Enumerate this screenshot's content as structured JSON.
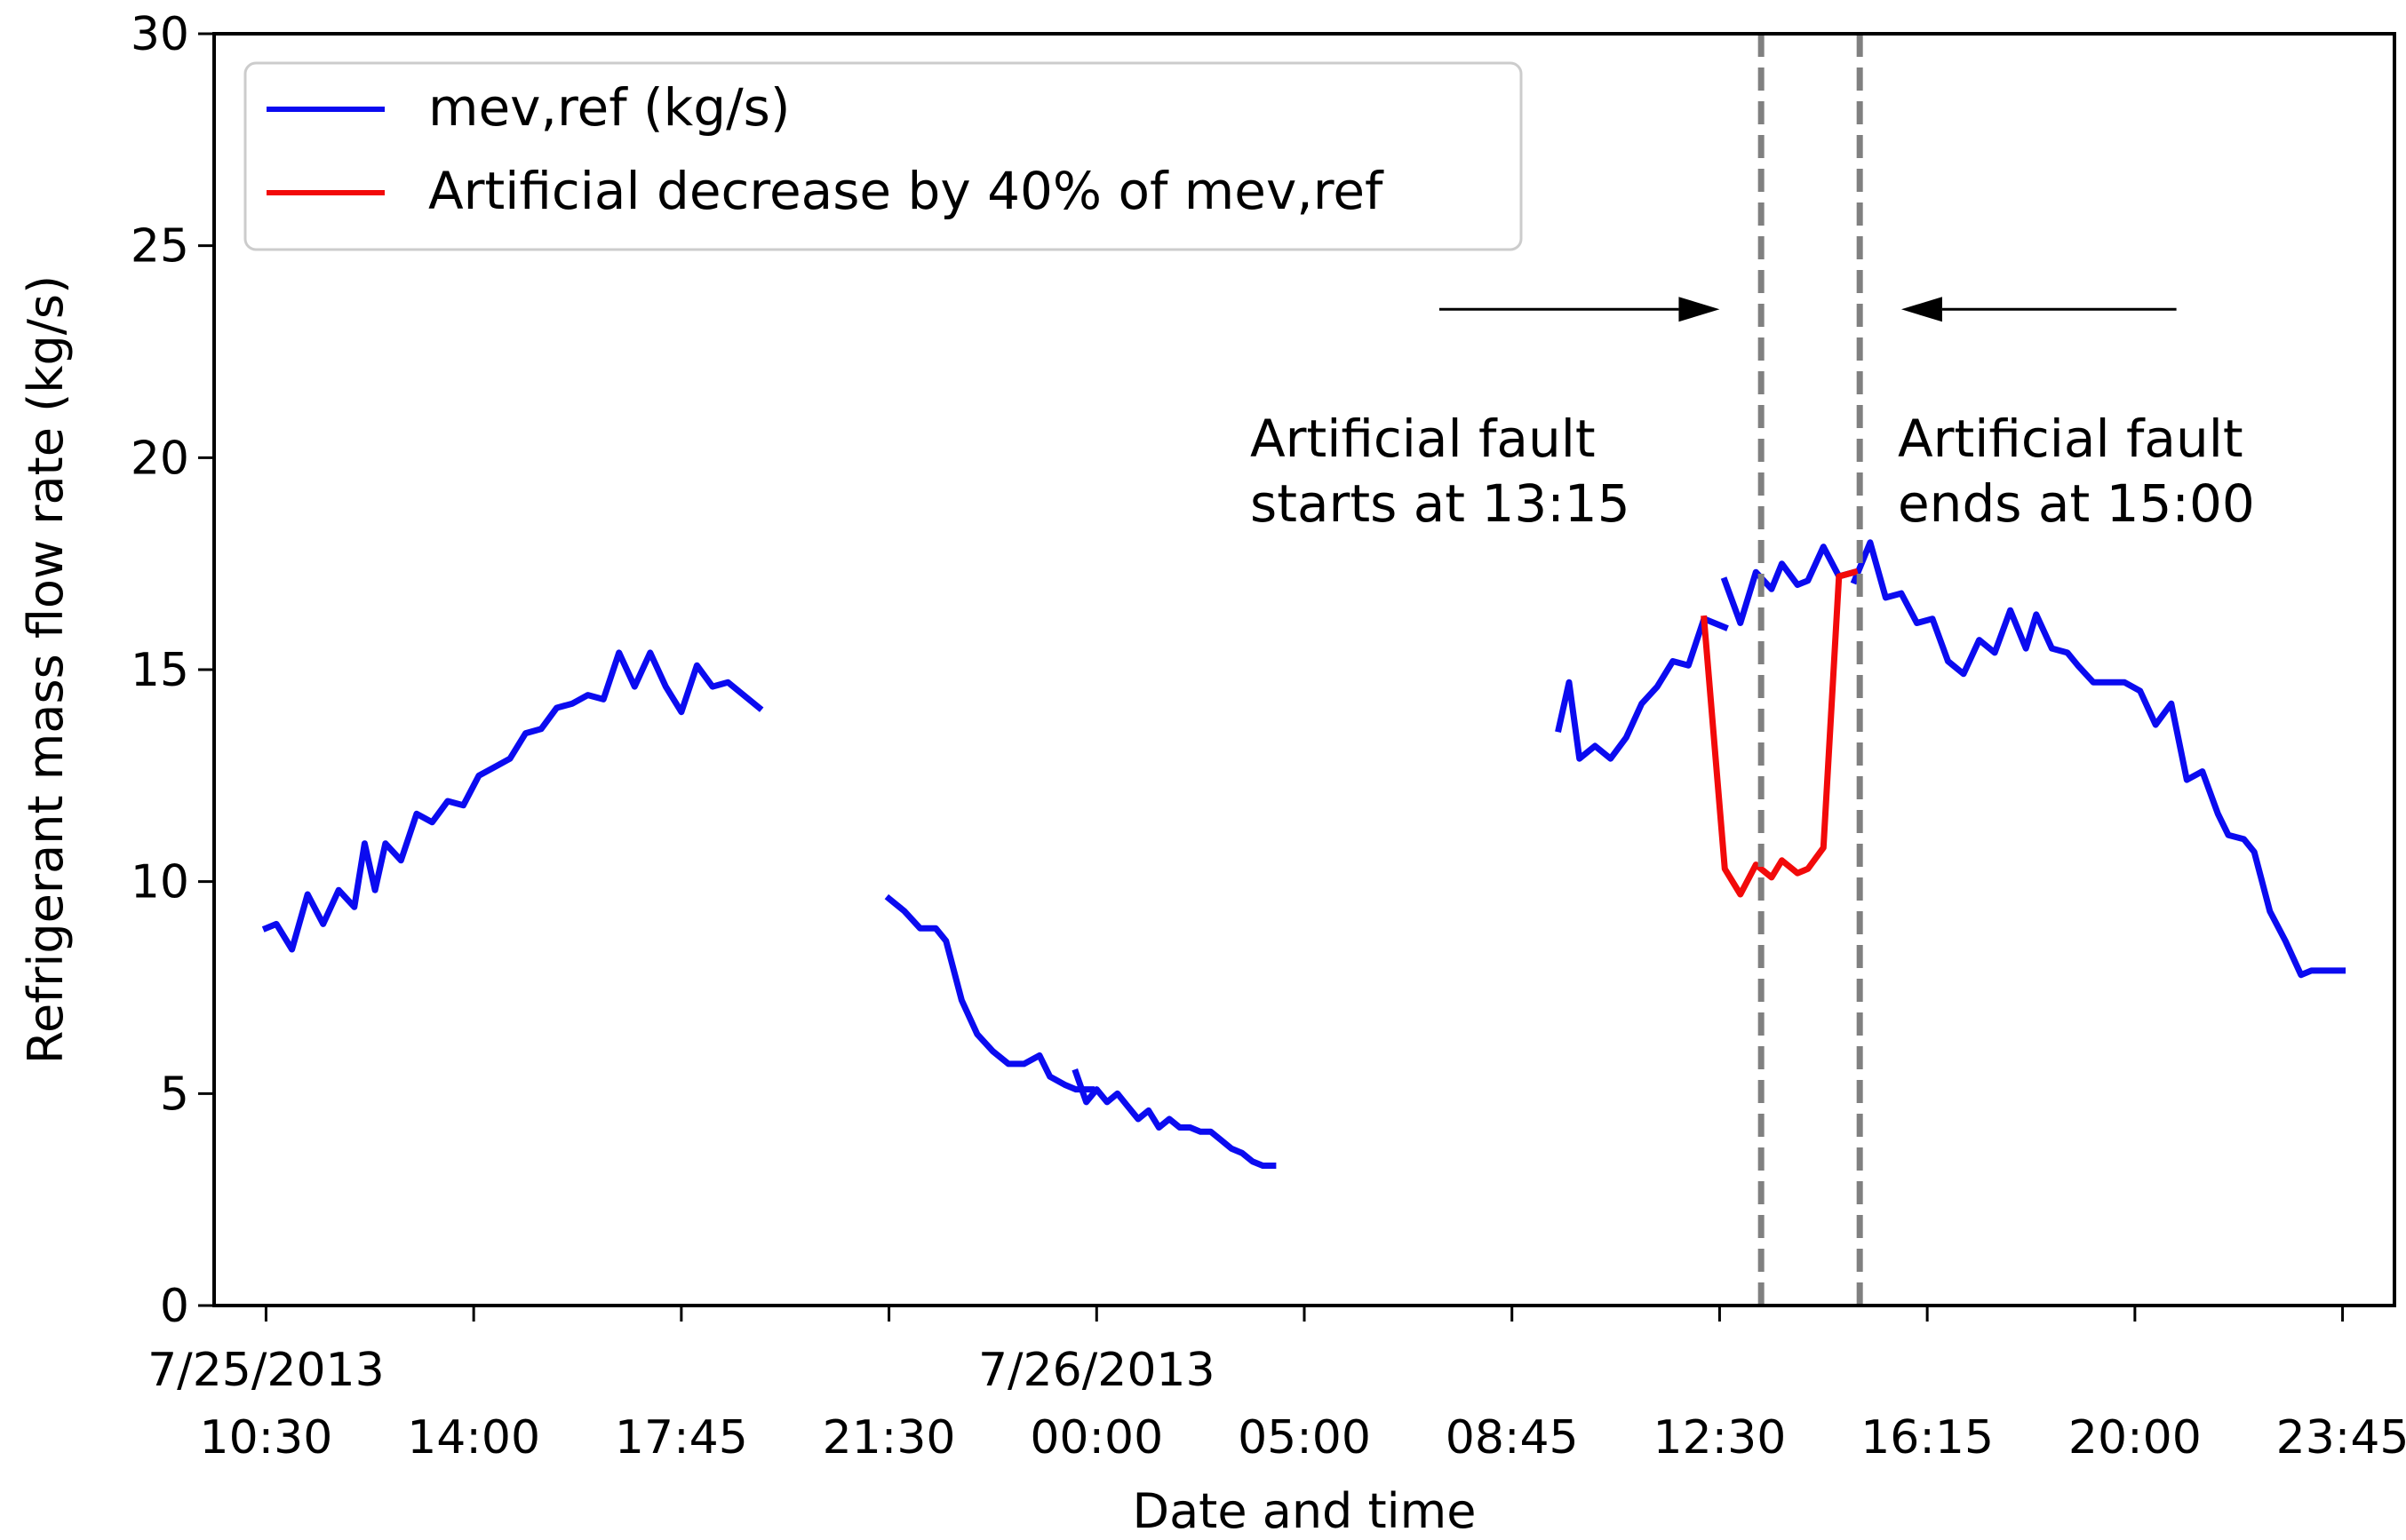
{
  "chart_data": {
    "type": "line",
    "title": "",
    "xlabel": "Date and time",
    "ylabel": "Refrigerant mass flow rate (kg/s)",
    "ylim": [
      0,
      30
    ],
    "xlim": [
      -0.5,
      20.5
    ],
    "yticks": [
      0,
      5,
      10,
      15,
      20,
      25,
      30
    ],
    "xtick_positions": [
      0,
      2,
      4,
      6,
      8,
      10,
      12,
      14,
      16,
      18,
      20
    ],
    "xticks": [
      {
        "date": "7/25/2013",
        "time": "10:30"
      },
      {
        "date": "",
        "time": "14:00"
      },
      {
        "date": "",
        "time": "17:45"
      },
      {
        "date": "",
        "time": "21:30"
      },
      {
        "date": "7/26/2013",
        "time": "00:00"
      },
      {
        "date": "",
        "time": "05:00"
      },
      {
        "date": "",
        "time": "08:45"
      },
      {
        "date": "",
        "time": "12:30"
      },
      {
        "date": "",
        "time": "16:15"
      },
      {
        "date": "",
        "time": "20:00"
      },
      {
        "date": "",
        "time": "23:45"
      }
    ],
    "series": [
      {
        "name": "mev,ref (kg/s)",
        "color": "#0b0bf0",
        "segments": [
          {
            "x": [
              0,
              0.1,
              0.25,
              0.4,
              0.55,
              0.7,
              0.85,
              0.95,
              1.05,
              1.15,
              1.3,
              1.45,
              1.6,
              1.75,
              1.9,
              2.05,
              2.2,
              2.35,
              2.5,
              2.65,
              2.8,
              2.95,
              3.1,
              3.25,
              3.4,
              3.55,
              3.7,
              3.85,
              4.0,
              4.15,
              4.3,
              4.45,
              4.75
            ],
            "y": [
              8.9,
              9.0,
              8.4,
              9.7,
              9.0,
              9.8,
              9.4,
              10.9,
              9.8,
              10.9,
              10.5,
              11.6,
              11.4,
              11.9,
              11.8,
              12.5,
              12.7,
              12.9,
              13.5,
              13.6,
              14.1,
              14.2,
              14.4,
              14.3,
              15.4,
              14.6,
              15.4,
              14.6,
              14.0,
              15.1,
              14.6,
              14.7,
              14.1
            ]
          },
          {
            "x": [
              6.0,
              6.15,
              6.3,
              6.45,
              6.55,
              6.7,
              6.85,
              7.0,
              7.15,
              7.3,
              7.45,
              7.55,
              7.7,
              7.8,
              7.95
            ],
            "y": [
              9.6,
              9.3,
              8.9,
              8.9,
              8.6,
              7.2,
              6.4,
              6.0,
              5.7,
              5.7,
              5.9,
              5.4,
              5.2,
              5.1,
              5.1
            ]
          },
          {
            "x": [
              7.8,
              7.9,
              8.0,
              8.1,
              8.2,
              8.3,
              8.4,
              8.5,
              8.6,
              8.7,
              8.8,
              8.9,
              9.0,
              9.1,
              9.2,
              9.3,
              9.4,
              9.5,
              9.6,
              9.7
            ],
            "y": [
              5.5,
              4.8,
              5.1,
              4.8,
              5.0,
              4.7,
              4.4,
              4.6,
              4.2,
              4.4,
              4.2,
              4.2,
              4.1,
              4.1,
              3.9,
              3.7,
              3.6,
              3.4,
              3.3,
              3.3
            ]
          },
          {
            "x": [
              12.45,
              12.55,
              12.65,
              12.8,
              12.95,
              13.1,
              13.25,
              13.4,
              13.55,
              13.7,
              13.85,
              14.05
            ],
            "y": [
              13.6,
              14.7,
              12.9,
              13.2,
              12.9,
              13.4,
              14.2,
              14.6,
              15.2,
              15.1,
              16.2,
              16.0
            ]
          },
          {
            "x": [
              14.05,
              14.2,
              14.35,
              14.5,
              14.6,
              14.75,
              14.85,
              15.0,
              15.15,
              15.3
            ],
            "y": [
              17.1,
              16.1,
              17.3,
              16.9,
              17.5,
              17.0,
              17.1,
              17.9,
              17.2,
              17.3
            ]
          },
          {
            "x": [
              15.3,
              15.45,
              15.6,
              15.75,
              15.9,
              16.05,
              16.2,
              16.35,
              16.5,
              16.65,
              16.8,
              16.95,
              17.05,
              17.2,
              17.35,
              17.45,
              17.6,
              17.75,
              17.9,
              18.05,
              18.2,
              18.35,
              18.5,
              18.65,
              18.8,
              18.9,
              19.05,
              19.15,
              19.3,
              19.45,
              19.6,
              19.7,
              19.85,
              20.0
            ],
            "y": [
              17.1,
              18.0,
              16.7,
              16.8,
              16.1,
              16.2,
              15.2,
              14.9,
              15.7,
              15.4,
              16.4,
              15.5,
              16.3,
              15.5,
              15.4,
              15.1,
              14.7,
              14.7,
              14.7,
              14.5,
              13.7,
              14.2,
              12.4,
              12.6,
              11.6,
              11.1,
              11.0,
              10.7,
              9.3,
              8.6,
              7.8,
              7.9,
              7.9,
              7.9
            ]
          }
        ]
      },
      {
        "name": "Artificial decrease by 40% of mev,ref",
        "color": "#f20a0a",
        "segments": [
          {
            "x": [
              13.85,
              14.05,
              14.2,
              14.35,
              14.5,
              14.6,
              14.75,
              14.85,
              15.0,
              15.15,
              15.3
            ],
            "y": [
              16.2,
              10.3,
              9.7,
              10.4,
              10.1,
              10.5,
              10.2,
              10.3,
              10.8,
              17.2,
              17.3
            ]
          }
        ]
      }
    ],
    "vlines": [
      {
        "x": 14.4,
        "label": "Artificial fault start"
      },
      {
        "x": 15.35,
        "label": "Artificial fault end"
      }
    ],
    "arrows": [
      {
        "from_x": 11.3,
        "to_x": 14.0,
        "y": 23.5
      },
      {
        "from_x": 18.4,
        "to_x": 15.75,
        "y": 23.5
      }
    ],
    "annotations": [
      {
        "lines": [
          "Artificial fault",
          "starts at 13:15"
        ]
      },
      {
        "lines": [
          "Artificial fault",
          "ends at 15:00"
        ]
      }
    ],
    "legend": {
      "position": "top-left"
    }
  }
}
